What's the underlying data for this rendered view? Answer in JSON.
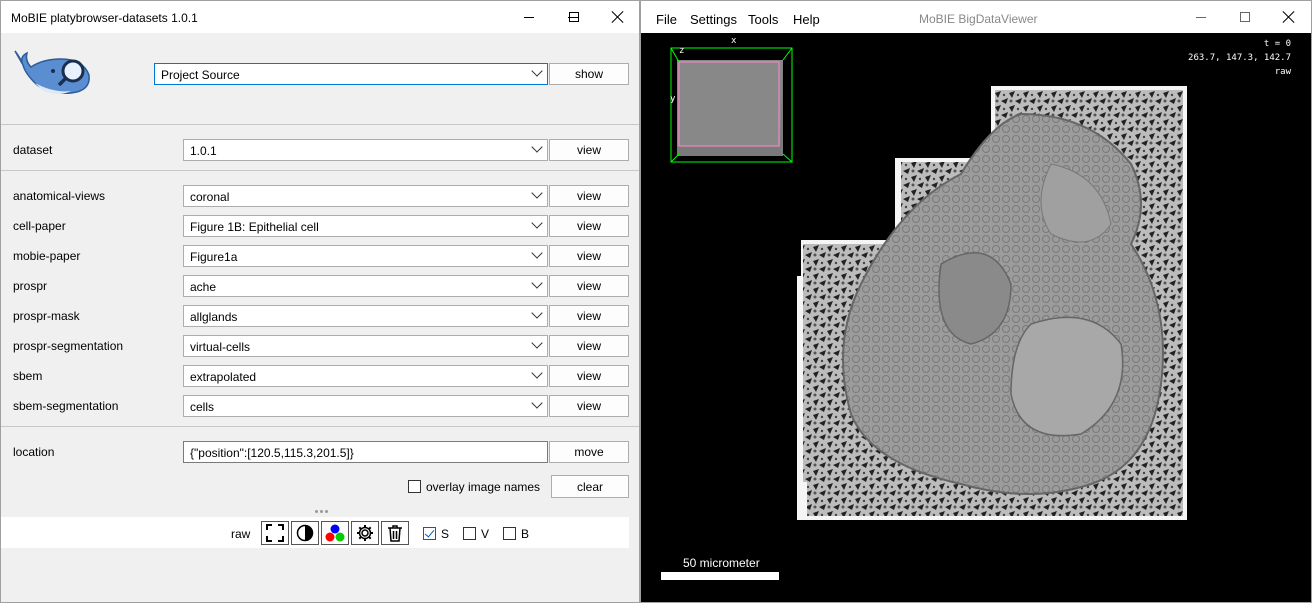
{
  "left_window": {
    "title": "MoBIE platybrowser-datasets 1.0.1",
    "source_select": {
      "value": "Project Source",
      "button": "show"
    },
    "dataset": {
      "label": "dataset",
      "value": "1.0.1",
      "button": "view"
    },
    "rows": [
      {
        "label": "anatomical-views",
        "value": "coronal",
        "button": "view"
      },
      {
        "label": "cell-paper",
        "value": "Figure 1B: Epithelial cell",
        "button": "view"
      },
      {
        "label": "mobie-paper",
        "value": "Figure1a",
        "button": "view"
      },
      {
        "label": "prospr",
        "value": "ache",
        "button": "view"
      },
      {
        "label": "prospr-mask",
        "value": "allglands",
        "button": "view"
      },
      {
        "label": "prospr-segmentation",
        "value": "virtual-cells",
        "button": "view"
      },
      {
        "label": "sbem",
        "value": "extrapolated",
        "button": "view"
      },
      {
        "label": "sbem-segmentation",
        "value": "cells",
        "button": "view"
      }
    ],
    "location": {
      "label": "location",
      "value": "{\"position\":[120.5,115.3,201.5]}",
      "button": "move"
    },
    "overlay": {
      "label": "overlay image names",
      "checked": false,
      "clear_button": "clear"
    },
    "source_bar": {
      "name": "raw",
      "icons": [
        "focus-icon",
        "contrast-icon",
        "color-icon",
        "settings-icon",
        "delete-icon"
      ],
      "checkboxes": [
        {
          "label": "S",
          "checked": true
        },
        {
          "label": "V",
          "checked": false
        },
        {
          "label": "B",
          "checked": false
        }
      ]
    }
  },
  "right_window": {
    "title": "MoBIE BigDataViewer",
    "menu": [
      "File",
      "Settings",
      "Tools",
      "Help"
    ],
    "hud": {
      "time": "t = 0",
      "coords": "263.7,  147.3,  142.7",
      "source": "raw",
      "axis_x": "x",
      "axis_y": "y",
      "axis_z": "z"
    },
    "scale_label": "50 micrometer"
  },
  "colors": {
    "accent": "#005fb8",
    "box_green": "#00ff00",
    "box_pink": "#ff88cc"
  }
}
